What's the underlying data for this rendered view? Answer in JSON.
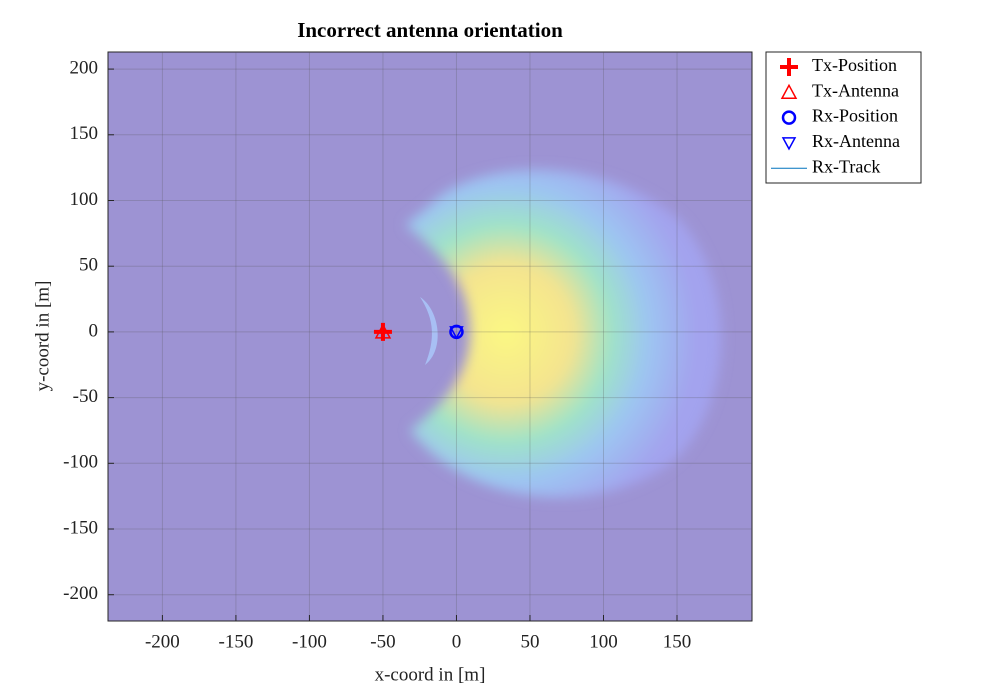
{
  "chart_data": {
    "type": "scatter",
    "title": "Incorrect antenna orientation",
    "x_label": "x-coord in [m]",
    "y_label": "y-coord in [m]",
    "xlim": [
      -237,
      201
    ],
    "ylim": [
      -220,
      213
    ],
    "xticks": [
      -200,
      -150,
      -100,
      -50,
      0,
      50,
      100,
      150
    ],
    "yticks": [
      -200,
      -150,
      -100,
      -50,
      0,
      50,
      100,
      150,
      200
    ],
    "grid": true,
    "legend_position": "outside-top-right",
    "series": [
      {
        "name": "Tx-Position",
        "color": "#ff0000",
        "marker": "plus",
        "x": [
          -50
        ],
        "y": [
          0
        ]
      },
      {
        "name": "Tx-Antenna",
        "color": "#ff0000",
        "marker": "triangle-up",
        "x": [
          -50
        ],
        "y": [
          0
        ]
      },
      {
        "name": "Rx-Position",
        "color": "#0000ff",
        "marker": "circle",
        "x": [
          0
        ],
        "y": [
          0
        ]
      },
      {
        "name": "Rx-Antenna",
        "color": "#0000ff",
        "marker": "triangle-down",
        "x": [
          0
        ],
        "y": [
          0
        ]
      },
      {
        "name": "Rx-Track",
        "color": "#0072bd",
        "marker": "line",
        "x": [
          0
        ],
        "y": [
          0
        ]
      }
    ]
  }
}
